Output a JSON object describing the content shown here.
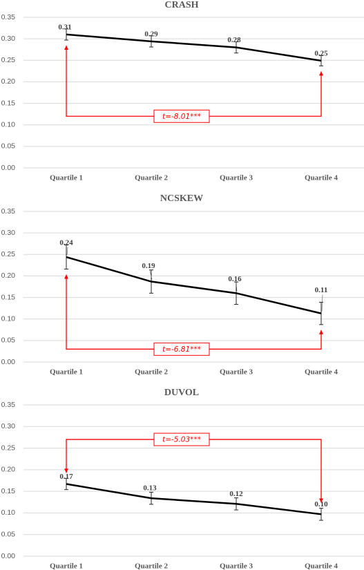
{
  "colors": {
    "line": "#000000",
    "annotation": "#ff0000",
    "grid": "#d9d9d9",
    "text": "#595959"
  },
  "chart_data": [
    {
      "type": "line",
      "title": "CRASH",
      "categories": [
        "Quartile 1",
        "Quartile 2",
        "Quartile 3",
        "Quartile 4"
      ],
      "values": [
        0.31,
        0.294,
        0.28,
        0.249
      ],
      "data_labels": [
        "0.31",
        "0.29",
        "0.28",
        "0.25"
      ],
      "error": [
        0.013,
        0.013,
        0.013,
        0.012
      ],
      "ylim": [
        0,
        0.35
      ],
      "yticks": [
        "0.00",
        "0.05",
        "0.10",
        "0.15",
        "0.20",
        "0.25",
        "0.30",
        "0.35"
      ],
      "grid": true,
      "annotation": {
        "text": "t=-8.01***",
        "from": "Quartile 1",
        "to": "Quartile 4",
        "bracket_y": 0.12,
        "direction": "up"
      }
    },
    {
      "type": "line",
      "title": "NCSKEW",
      "categories": [
        "Quartile 1",
        "Quartile 2",
        "Quartile 3",
        "Quartile 4"
      ],
      "values": [
        0.244,
        0.187,
        0.16,
        0.113
      ],
      "data_labels": [
        "0.24",
        "0.19",
        "0.16",
        "0.11"
      ],
      "error": [
        0.028,
        0.027,
        0.026,
        0.026
      ],
      "ylim": [
        0,
        0.35
      ],
      "yticks": [
        "0.00",
        "0.05",
        "0.10",
        "0.15",
        "0.20",
        "0.25",
        "0.30",
        "0.35"
      ],
      "grid": true,
      "annotation": {
        "text": "t=-6.81***",
        "from": "Quartile 1",
        "to": "Quartile 4",
        "bracket_y": 0.03,
        "direction": "up"
      }
    },
    {
      "type": "line",
      "title": "DUVOL",
      "categories": [
        "Quartile 1",
        "Quartile 2",
        "Quartile 3",
        "Quartile 4"
      ],
      "values": [
        0.167,
        0.134,
        0.121,
        0.097
      ],
      "data_labels": [
        "0.17",
        "0.13",
        "0.12",
        "0.10"
      ],
      "error": [
        0.013,
        0.014,
        0.014,
        0.014
      ],
      "ylim": [
        0,
        0.35
      ],
      "yticks": [
        "0.00",
        "0.05",
        "0.10",
        "0.15",
        "0.20",
        "0.25",
        "0.30",
        "0.35"
      ],
      "grid": true,
      "annotation": {
        "text": "t=-5.03***",
        "from": "Quartile 1",
        "to": "Quartile 4",
        "bracket_y": 0.27,
        "direction": "down"
      }
    }
  ]
}
